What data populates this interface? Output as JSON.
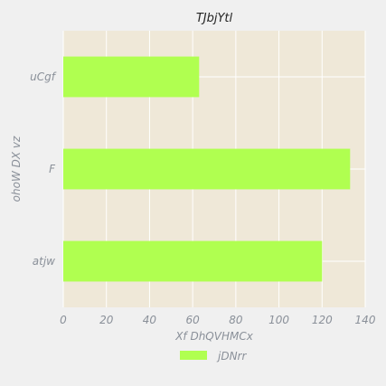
{
  "chart_data": {
    "type": "bar",
    "orientation": "horizontal",
    "title": "TJbjYtl",
    "xlabel": "Xf DhQVHMCx",
    "ylabel": "ohoW DX  vz",
    "categories": [
      "uCgf",
      "F",
      "atjw"
    ],
    "series": [
      {
        "name": "jDNrr",
        "values": [
          63,
          133,
          120
        ]
      }
    ],
    "xlim": [
      0,
      140
    ],
    "xticks": [
      "0",
      "20",
      "40",
      "60",
      "80",
      "100",
      "120",
      "140"
    ],
    "grid": true,
    "legend_position": "bottom-center",
    "colors": {
      "bar": "#b0ff50",
      "plot_background": "#efe8d8",
      "page_background": "#f0f0f0",
      "grid": "#ffffff",
      "text": "#8a9099",
      "title": "#222222"
    }
  }
}
